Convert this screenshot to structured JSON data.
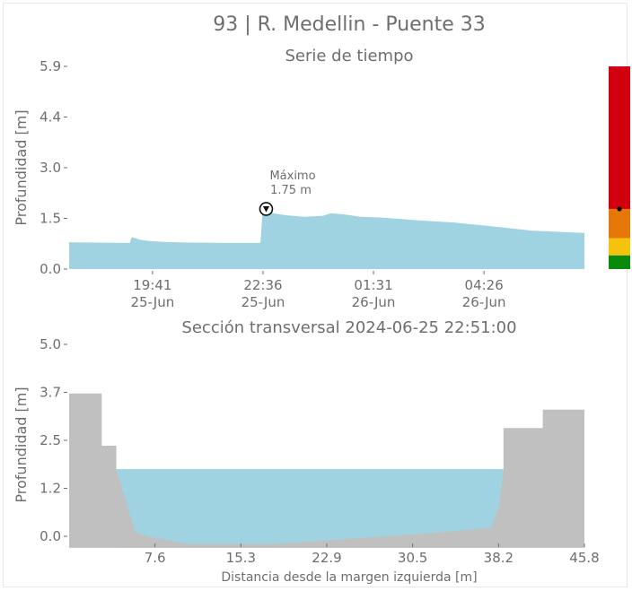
{
  "title": "93 | R. Medellin - Puente 33",
  "charts": {
    "timeseries": {
      "subtitle": "Serie de tiempo",
      "ylabel": "Profundidad [m]",
      "annotation_label": "Máximo",
      "annotation_value": "1.75 m"
    },
    "section": {
      "subtitle": "Sección transversal 2024-06-25 22:51:00",
      "ylabel": "Profundidad [m]",
      "xlabel": "Distancia desde la margen izquierda [m]"
    }
  },
  "colors": {
    "water": "#9fd3e2",
    "terrain": "#c0c0c0",
    "text": "#6e6e6e",
    "level_red": "#d0000f",
    "level_orange": "#e6780a",
    "level_yellow": "#f5c20d",
    "level_green": "#0a8a0a"
  },
  "chart_data": [
    {
      "type": "area",
      "title": "Serie de tiempo",
      "ylabel": "Profundidad [m]",
      "ylim": [
        0,
        5.9
      ],
      "y_ticks": [
        "0.0",
        "1.5",
        "3.0",
        "4.4",
        "5.9"
      ],
      "y_tick_values": [
        0,
        1.475,
        2.95,
        4.425,
        5.9
      ],
      "x_ticks": [
        {
          "time": "19:41",
          "date": "25-Jun",
          "hours": 0
        },
        {
          "time": "22:36",
          "date": "25-Jun",
          "hours": 2.917
        },
        {
          "time": "01:31",
          "date": "26-Jun",
          "hours": 5.833
        },
        {
          "time": "04:26",
          "date": "26-Jun",
          "hours": 8.75
        }
      ],
      "xlim_hours_from_19_41": [
        -2.2,
        11.4
      ],
      "series": [
        {
          "hours_from_19_41": [
            -2.2,
            -0.6,
            -0.55,
            -0.5,
            -0.35,
            -0.1,
            0.3,
            1,
            2,
            2.85,
            2.9,
            3.0,
            3.2,
            3.5,
            4.0,
            4.5,
            4.7,
            5.0,
            5.5,
            6.0,
            7.0,
            8.0,
            9.0,
            10.0,
            11.4
          ],
          "depth_m": [
            0.78,
            0.76,
            0.92,
            0.92,
            0.86,
            0.82,
            0.79,
            0.77,
            0.76,
            0.76,
            1.62,
            1.75,
            1.62,
            1.57,
            1.52,
            1.55,
            1.62,
            1.6,
            1.52,
            1.5,
            1.42,
            1.35,
            1.24,
            1.12,
            1.05
          ]
        }
      ],
      "annotation": {
        "label": "Máximo",
        "value": "1.75 m",
        "hours": 3.0,
        "depth_m": 1.75
      }
    },
    {
      "type": "area",
      "title": "Sección transversal 2024-06-25 22:51:00",
      "xlabel": "Distancia desde la margen izquierda [m]",
      "ylabel": "Profundidad [m]",
      "xlim": [
        0,
        45.8
      ],
      "ylim": [
        -0.3,
        5.0
      ],
      "x_ticks": [
        "7.6",
        "15.3",
        "22.9",
        "30.5",
        "38.2",
        "45.8"
      ],
      "x_tick_values": [
        7.63,
        15.27,
        22.9,
        30.53,
        38.17,
        45.8
      ],
      "y_ticks": [
        "0.0",
        "1.2",
        "2.5",
        "3.7",
        "5.0"
      ],
      "y_tick_values": [
        0,
        1.25,
        2.5,
        3.75,
        5.0
      ],
      "terrain": {
        "x": [
          0,
          2.9,
          2.9,
          4.2,
          4.2,
          5.9,
          7.0,
          10.5,
          18.2,
          25.0,
          32.0,
          37.5,
          38.2,
          38.6,
          38.6,
          42.1,
          42.1,
          45.8
        ],
        "y": [
          3.72,
          3.72,
          2.36,
          2.36,
          1.75,
          0.1,
          0.0,
          -0.2,
          -0.2,
          -0.06,
          0.08,
          0.22,
          0.8,
          1.75,
          2.82,
          2.82,
          3.3,
          3.3
        ]
      },
      "water_level_m": 1.75
    },
    {
      "type": "bar",
      "title": "",
      "segments": [
        {
          "color": "#0a8a0a",
          "from": 0,
          "to": 0.4
        },
        {
          "color": "#f5c20d",
          "from": 0.4,
          "to": 0.9
        },
        {
          "color": "#e6780a",
          "from": 0.9,
          "to": 1.75
        },
        {
          "color": "#d0000f",
          "from": 1.75,
          "to": 5.9
        }
      ],
      "ylim": [
        0,
        5.9
      ],
      "marker_depth_m": 1.75
    }
  ]
}
